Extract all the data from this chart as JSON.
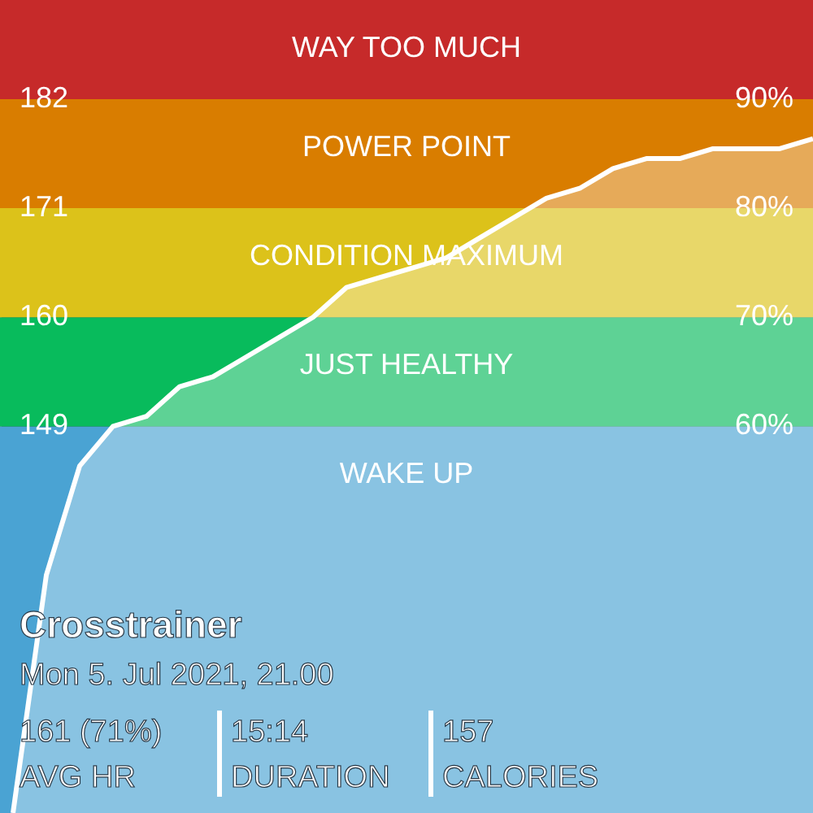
{
  "chart_data": {
    "type": "area",
    "title": "Crosstrainer",
    "subtitle": "Mon 5. Jul 2021, 21.00",
    "categories": [
      null,
      null,
      null,
      null,
      null,
      null,
      null,
      null,
      null,
      null,
      null,
      null,
      null,
      null,
      null,
      null,
      null,
      null,
      null,
      null,
      null,
      null,
      null,
      null,
      null
    ],
    "series": [
      {
        "color": "#ffffff",
        "values": [
          110,
          134,
          145,
          149,
          150,
          153,
          154,
          156,
          158,
          160,
          163,
          164,
          165,
          166,
          168,
          170,
          172,
          173,
          175,
          176,
          176,
          177,
          177,
          177,
          178
        ]
      }
    ],
    "ylim": [
      110,
      192
    ],
    "yticks": [
      149,
      160,
      171,
      182
    ],
    "y2lim": [
      24.5,
      99.1
    ],
    "y2ticks": [
      {
        "value": 60,
        "label": "60%"
      },
      {
        "value": 70,
        "label": "70%"
      },
      {
        "value": 80,
        "label": "80%"
      },
      {
        "value": 90,
        "label": "90%"
      }
    ],
    "bands": [
      {
        "axis": "y",
        "from": 110,
        "to": 149,
        "label": "WAKE UP",
        "color": "#4aa3d3"
      },
      {
        "axis": "y",
        "from": 149,
        "to": 160,
        "label": "JUST HEALTHY",
        "color": "#08bb5c"
      },
      {
        "axis": "y",
        "from": 160,
        "to": 171,
        "label": "CONDITION MAXIMUM",
        "color": "#dcc21a"
      },
      {
        "axis": "y",
        "from": 171,
        "to": 182,
        "label": "POWER POINT",
        "color": "#d97d00"
      },
      {
        "axis": "y",
        "from": 182,
        "to": 192,
        "label": "WAY TOO MUCH",
        "color": "#c62a2a"
      }
    ],
    "annotations": [
      "161 (71%)",
      "AVG HR",
      "15:14",
      "DURATION",
      "157",
      "CALORIES"
    ],
    "tick_labels": true
  }
}
